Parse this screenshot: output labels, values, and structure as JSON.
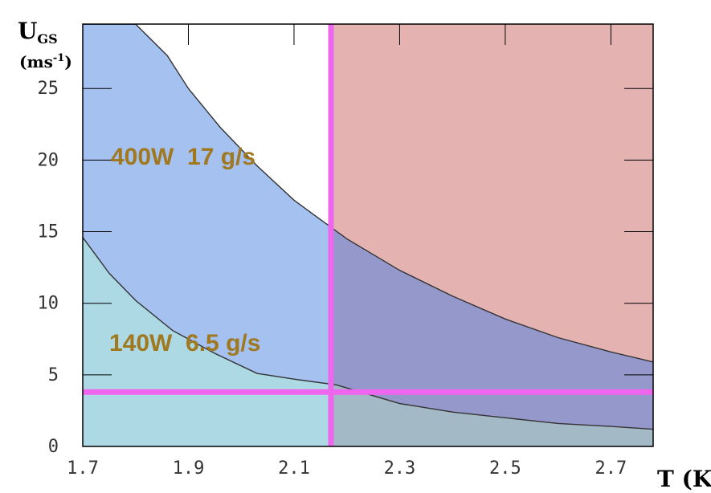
{
  "chart_data": {
    "type": "area",
    "title": "",
    "xlabel": "T (K)",
    "ylabel": "U",
    "ylabel_sub": "GS",
    "yunit_base": "(ms",
    "yunit_exp": "-1",
    "yunit_close": ")",
    "xlim": [
      1.7,
      2.78
    ],
    "ylim": [
      0,
      29.5
    ],
    "xticks": [
      1.7,
      1.9,
      2.1,
      2.3,
      2.5,
      2.7
    ],
    "xtick_labels": [
      "1.7",
      "1.9",
      "2.1",
      "2.3",
      "2.5",
      "2.7"
    ],
    "yticks": [
      0,
      5,
      10,
      15,
      20,
      25
    ],
    "ytick_labels": [
      "0",
      "5",
      "10",
      "15",
      "20",
      "25"
    ],
    "grid": false,
    "series": [
      {
        "name": "400W  17 g/s",
        "x": [
          1.7,
          1.8,
          1.86,
          1.9,
          1.96,
          2.03,
          2.1,
          2.2,
          2.3,
          2.4,
          2.5,
          2.6,
          2.7,
          2.78
        ],
        "y": [
          29.5,
          29.5,
          27.3,
          25.0,
          22.3,
          19.6,
          17.2,
          14.5,
          12.3,
          10.5,
          8.9,
          7.6,
          6.6,
          5.9
        ]
      },
      {
        "name": "140W  6.5 g/s",
        "x": [
          1.7,
          1.75,
          1.8,
          1.87,
          1.95,
          2.03,
          2.1,
          2.18,
          2.3,
          2.4,
          2.5,
          2.6,
          2.7,
          2.78
        ],
        "y": [
          14.6,
          12.1,
          10.2,
          8.1,
          6.5,
          5.1,
          4.7,
          4.3,
          3.0,
          2.4,
          2.0,
          1.6,
          1.4,
          1.2
        ]
      }
    ],
    "thresholds": {
      "vertical_x": 2.17,
      "horizontal_y": 3.8
    },
    "regions": [
      {
        "name": "red-region",
        "color": "#e5b2b2"
      },
      {
        "name": "high-power-region",
        "color": "#a2c0f0"
      },
      {
        "name": "low-power-region",
        "color": "#add9e5"
      }
    ],
    "colors": {
      "threshold_line": "#ee66ee",
      "curve": "#333333",
      "annotation": "#a07820",
      "axis": "#000000"
    }
  }
}
